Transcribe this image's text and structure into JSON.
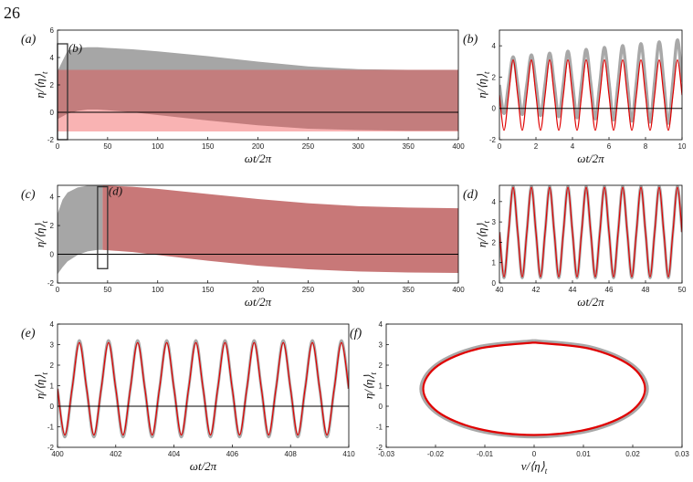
{
  "page_number": "26",
  "chart_data": [
    {
      "type": "area",
      "panel": "(a)",
      "xlabel": "ωt/2π",
      "ylabel": [
        "η/⟨η⟩",
        "t"
      ],
      "xlim": [
        0,
        400
      ],
      "ylim": [
        -2,
        6
      ],
      "xticks": [
        0,
        50,
        100,
        150,
        200,
        250,
        300,
        350,
        400
      ],
      "yticks": [
        -2,
        0,
        2,
        4,
        6
      ],
      "hline": 0,
      "boxes": [
        {
          "label": "(b)",
          "x": [
            0,
            10
          ],
          "y": [
            -2,
            5
          ]
        }
      ],
      "x": [
        0,
        10,
        20,
        30,
        40,
        50,
        75,
        100,
        150,
        200,
        250,
        300,
        350,
        400
      ],
      "series": [
        {
          "color": "#a6a6a6",
          "opacity": 1,
          "upper": [
            3.0,
            4.5,
            4.7,
            4.75,
            4.75,
            4.7,
            4.6,
            4.45,
            4.1,
            3.7,
            3.35,
            3.15,
            3.1,
            3.1
          ],
          "lower": [
            -0.5,
            -0.1,
            0.1,
            0.2,
            0.2,
            0.15,
            0.0,
            -0.2,
            -0.6,
            -0.95,
            -1.2,
            -1.3,
            -1.35,
            -1.35
          ]
        },
        {
          "color": "#f04040",
          "opacity": 0.4,
          "upper": [
            3.1,
            3.1,
            3.1,
            3.1,
            3.1,
            3.1,
            3.1,
            3.1,
            3.1,
            3.1,
            3.1,
            3.1,
            3.1,
            3.1
          ],
          "lower": [
            -1.4,
            -1.4,
            -1.4,
            -1.4,
            -1.4,
            -1.4,
            -1.4,
            -1.4,
            -1.4,
            -1.4,
            -1.4,
            -1.4,
            -1.4,
            -1.4
          ]
        }
      ]
    },
    {
      "type": "line",
      "panel": "(b)",
      "xlabel": "ωt/2π",
      "ylabel": [
        "η/⟨η⟩",
        "t"
      ],
      "xlim": [
        0,
        10
      ],
      "ylim": [
        -2,
        5
      ],
      "xticks": [
        0,
        2,
        4,
        6,
        8,
        10
      ],
      "yticks": [
        -2,
        0,
        2,
        4
      ],
      "hline": 0,
      "x": [
        0,
        0.25,
        0.5,
        0.75,
        1,
        1.25,
        1.5,
        1.75,
        2,
        2.25,
        2.5,
        2.75,
        3,
        3.25,
        3.5,
        3.75,
        4,
        4.25,
        4.5,
        4.75,
        5,
        5.25,
        5.5,
        5.75,
        6,
        6.25,
        6.5,
        6.75,
        7,
        7.25,
        7.5,
        7.75,
        8,
        8.25,
        8.5,
        8.75,
        9,
        9.25,
        9.5,
        9.75,
        10
      ],
      "series": [
        {
          "color": "#a8a8a8",
          "width": 3.5,
          "values": [
            1.5,
            -0.32,
            1.5,
            3.29,
            1.5,
            -0.39,
            1.5,
            3.41,
            1.55,
            -0.46,
            1.55,
            3.53,
            1.55,
            -0.53,
            1.55,
            3.65,
            1.6,
            -0.6,
            1.6,
            3.77,
            1.6,
            -0.67,
            1.6,
            3.89,
            1.65,
            -0.74,
            1.65,
            4.01,
            1.65,
            -0.81,
            1.65,
            4.13,
            1.7,
            -0.88,
            1.7,
            4.25,
            1.7,
            -0.95,
            1.7,
            4.37,
            1.7
          ]
        },
        {
          "color": "#e00000",
          "width": 1.2,
          "values": [
            0.85,
            -1.4,
            0.85,
            3.1,
            0.85,
            -1.4,
            0.85,
            3.1,
            0.85,
            -1.4,
            0.85,
            3.1,
            0.85,
            -1.4,
            0.85,
            3.1,
            0.85,
            -1.4,
            0.85,
            3.1,
            0.85,
            -1.4,
            0.85,
            3.1,
            0.85,
            -1.4,
            0.85,
            3.1,
            0.85,
            -1.4,
            0.85,
            3.1,
            0.85,
            -1.4,
            0.85,
            3.1,
            0.85,
            -1.4,
            0.85,
            3.1,
            0.85
          ]
        }
      ]
    },
    {
      "type": "area",
      "panel": "(c)",
      "xlabel": "ωt/2π",
      "ylabel": [
        "η/⟨η⟩",
        "t"
      ],
      "xlim": [
        0,
        400
      ],
      "ylim": [
        -2,
        4.8
      ],
      "xticks": [
        0,
        50,
        100,
        150,
        200,
        250,
        300,
        350,
        400
      ],
      "yticks": [
        -2,
        0,
        2,
        4
      ],
      "hline": 0,
      "boxes": [
        {
          "label": "(d)",
          "x": [
            40,
            50
          ],
          "y": [
            -1,
            4.7
          ]
        }
      ],
      "series": [
        {
          "color": "#a6a6a6",
          "opacity": 1,
          "x": [
            0,
            5,
            10,
            20,
            30,
            40,
            45
          ],
          "upper": [
            2.8,
            3.8,
            4.3,
            4.65,
            4.78,
            4.8,
            4.8
          ],
          "lower": [
            -1.4,
            -0.9,
            -0.5,
            -0.05,
            0.2,
            0.3,
            0.3
          ]
        },
        {
          "color": "#c87878",
          "opacity": 1,
          "x": [
            45,
            50,
            75,
            100,
            150,
            200,
            250,
            300,
            350,
            400
          ],
          "upper": [
            4.8,
            4.78,
            4.7,
            4.55,
            4.2,
            3.85,
            3.55,
            3.35,
            3.25,
            3.2
          ],
          "lower": [
            0.3,
            0.28,
            0.15,
            -0.05,
            -0.45,
            -0.8,
            -1.05,
            -1.2,
            -1.27,
            -1.3
          ]
        }
      ]
    },
    {
      "type": "line",
      "panel": "(d)",
      "xlabel": "ωt/2π",
      "ylabel": [
        "η/⟨η⟩",
        "t"
      ],
      "xlim": [
        40,
        50
      ],
      "ylim": [
        0,
        4.8
      ],
      "xticks": [
        40,
        42,
        44,
        46,
        48,
        50
      ],
      "yticks": [
        0,
        1,
        2,
        3,
        4
      ],
      "x": [
        40,
        40.25,
        40.5,
        40.75,
        41,
        41.25,
        41.5,
        41.75,
        42,
        42.25,
        42.5,
        42.75,
        43,
        43.25,
        43.5,
        43.75,
        44,
        44.25,
        44.5,
        44.75,
        45,
        45.25,
        45.5,
        45.75,
        46,
        46.25,
        46.5,
        46.75,
        47,
        47.25,
        47.5,
        47.75,
        48,
        48.25,
        48.5,
        48.75,
        49,
        49.25,
        49.5,
        49.75,
        50
      ],
      "series": [
        {
          "color": "#a8a8a8",
          "width": 3,
          "values": [
            2.5,
            0.25,
            2.5,
            4.75,
            2.5,
            0.25,
            2.5,
            4.75,
            2.5,
            0.25,
            2.5,
            4.75,
            2.5,
            0.25,
            2.5,
            4.75,
            2.5,
            0.25,
            2.5,
            4.75,
            2.5,
            0.25,
            2.5,
            4.75,
            2.5,
            0.25,
            2.5,
            4.75,
            2.5,
            0.25,
            2.5,
            4.75,
            2.5,
            0.25,
            2.5,
            4.75,
            2.5,
            0.25,
            2.5,
            4.75,
            2.5
          ]
        },
        {
          "color": "#e00000",
          "width": 1.2,
          "values": [
            2.5,
            0.3,
            2.5,
            4.7,
            2.5,
            0.3,
            2.5,
            4.7,
            2.5,
            0.3,
            2.5,
            4.7,
            2.5,
            0.3,
            2.5,
            4.7,
            2.5,
            0.3,
            2.5,
            4.7,
            2.5,
            0.3,
            2.5,
            4.7,
            2.5,
            0.3,
            2.5,
            4.7,
            2.5,
            0.3,
            2.5,
            4.7,
            2.5,
            0.3,
            2.5,
            4.7,
            2.5,
            0.3,
            2.5,
            4.7,
            2.5
          ]
        }
      ]
    },
    {
      "type": "line",
      "panel": "(e)",
      "xlabel": "ωt/2π",
      "ylabel": [
        "η/⟨η⟩",
        "t"
      ],
      "xlim": [
        400,
        410
      ],
      "ylim": [
        -2,
        4
      ],
      "xticks": [
        400,
        402,
        404,
        406,
        408,
        410
      ],
      "yticks": [
        -2,
        -1,
        0,
        1,
        2,
        3,
        4
      ],
      "hline": 0,
      "x": [
        400,
        400.25,
        400.5,
        400.75,
        401,
        401.25,
        401.5,
        401.75,
        402,
        402.25,
        402.5,
        402.75,
        403,
        403.25,
        403.5,
        403.75,
        404,
        404.25,
        404.5,
        404.75,
        405,
        405.25,
        405.5,
        405.75,
        406,
        406.25,
        406.5,
        406.75,
        407,
        407.25,
        407.5,
        407.75,
        408,
        408.25,
        408.5,
        408.75,
        409,
        409.25,
        409.5,
        409.75,
        410
      ],
      "series": [
        {
          "color": "#a8a8a8",
          "width": 3,
          "values": [
            0.85,
            -1.5,
            0.85,
            3.2,
            0.85,
            -1.5,
            0.85,
            3.2,
            0.85,
            -1.5,
            0.85,
            3.2,
            0.85,
            -1.5,
            0.85,
            3.2,
            0.85,
            -1.5,
            0.85,
            3.2,
            0.85,
            -1.5,
            0.85,
            3.2,
            0.85,
            -1.5,
            0.85,
            3.2,
            0.85,
            -1.5,
            0.85,
            3.2,
            0.85,
            -1.5,
            0.85,
            3.2,
            0.85,
            -1.5,
            0.85,
            3.2,
            0.85
          ]
        },
        {
          "color": "#e00000",
          "width": 1.2,
          "values": [
            0.85,
            -1.4,
            0.85,
            3.1,
            0.85,
            -1.4,
            0.85,
            3.1,
            0.85,
            -1.4,
            0.85,
            3.1,
            0.85,
            -1.4,
            0.85,
            3.1,
            0.85,
            -1.4,
            0.85,
            3.1,
            0.85,
            -1.4,
            0.85,
            3.1,
            0.85,
            -1.4,
            0.85,
            3.1,
            0.85,
            -1.4,
            0.85,
            3.1,
            0.85,
            -1.4,
            0.85,
            3.1,
            0.85,
            -1.4,
            0.85,
            3.1,
            0.85
          ]
        }
      ]
    },
    {
      "type": "line",
      "panel": "(f)",
      "xlabel": [
        "v/⟨η⟩",
        "t"
      ],
      "ylabel": [
        "η/⟨η⟩",
        "t"
      ],
      "xlim": [
        -0.03,
        0.03
      ],
      "ylim": [
        -2,
        4
      ],
      "xticks": [
        -0.03,
        -0.02,
        -0.01,
        0,
        0.01,
        0.02,
        0.03
      ],
      "yticks": [
        -2,
        -1,
        0,
        1,
        2,
        3,
        4
      ],
      "series": [
        {
          "color": "#a8a8a8",
          "width": 3,
          "x": [
            0,
            0.0115,
            0.0199,
            0.023,
            0.0199,
            0.0115,
            0,
            -0.0115,
            -0.0199,
            -0.023,
            -0.0199,
            -0.0115,
            0
          ],
          "values": [
            3.2,
            2.89,
            2.03,
            0.85,
            -0.33,
            -1.19,
            -1.5,
            -1.19,
            -0.33,
            0.85,
            2.03,
            2.89,
            3.2
          ]
        },
        {
          "color": "#e00000",
          "width": 2.2,
          "x": [
            0,
            0.0113,
            0.0195,
            0.0225,
            0.0195,
            0.0113,
            0,
            -0.0113,
            -0.0195,
            -0.0225,
            -0.0195,
            -0.0113,
            0
          ],
          "values": [
            3.1,
            2.8,
            1.98,
            0.85,
            -0.28,
            -1.1,
            -1.4,
            -1.1,
            -0.28,
            0.85,
            1.98,
            2.8,
            3.1
          ]
        }
      ]
    }
  ]
}
